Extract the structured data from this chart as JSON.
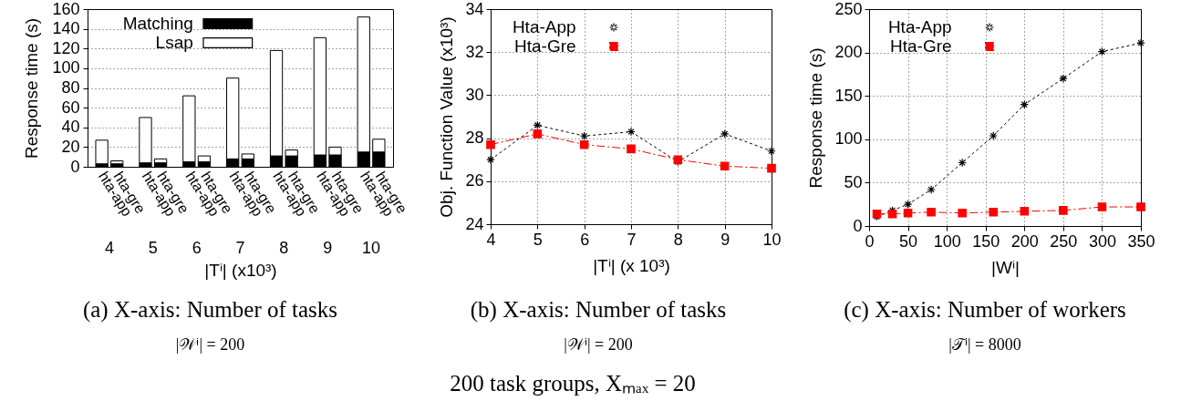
{
  "chart_data": [
    {
      "type": "bar",
      "title": "(a) X-axis: Number of tasks",
      "subtitle": "|𝒲ⁱ| = 200",
      "xlabel": "|Tⁱ| (x10³)",
      "ylabel": "Response time (s)",
      "categories": [
        "hta-app",
        "hta-gre",
        "hta-app",
        "hta-gre",
        "hta-app",
        "hta-gre",
        "hta-app",
        "hta-gre",
        "hta-app",
        "hta-gre",
        "hta-app",
        "hta-gre",
        "hta-app",
        "hta-gre"
      ],
      "series": [
        {
          "name": "Matching",
          "color": "#000000",
          "values": [
            3,
            3,
            4,
            4,
            5,
            5,
            8,
            8,
            11,
            11,
            12,
            12,
            15,
            15
          ]
        },
        {
          "name": "Lsap",
          "color": "#ffffff",
          "values": [
            24,
            3,
            46,
            4,
            67,
            6,
            82,
            5,
            107,
            6,
            119,
            8,
            137,
            13
          ]
        }
      ],
      "stacked": true,
      "ylim": [
        0,
        160
      ],
      "yticks": [
        0,
        20,
        40,
        60,
        80,
        100,
        120,
        140,
        160
      ],
      "grid": "y",
      "legend": "top left",
      "annotations": [
        "4",
        "5",
        "6",
        "7",
        "8",
        "9",
        "10"
      ]
    },
    {
      "type": "line",
      "title": "(b) X-axis: Number of tasks",
      "subtitle": "|𝒲ⁱ| = 200",
      "xlabel": "|Tⁱ| (x 10³)",
      "ylabel": "Obj. Function Value (x10³)",
      "x": [
        4,
        5,
        6,
        7,
        8,
        9,
        10
      ],
      "series": [
        {
          "name": "Hta-App",
          "color": "#000000",
          "marker": "cross",
          "line_style": "dotted",
          "values": [
            27.0,
            28.6,
            28.1,
            28.3,
            26.9,
            28.2,
            27.4
          ]
        },
        {
          "name": "Hta-Gre",
          "color": "#ff0000",
          "marker": "square",
          "line_style": "dashed",
          "values": [
            27.7,
            28.2,
            27.7,
            27.5,
            27.0,
            26.7,
            26.6
          ]
        }
      ],
      "xlim": [
        4,
        10
      ],
      "xticks": [
        4,
        5,
        6,
        7,
        8,
        9,
        10
      ],
      "ylim": [
        24,
        34
      ],
      "yticks": [
        24,
        26,
        28,
        30,
        32,
        34
      ],
      "grid": true,
      "legend": "top left",
      "annotations": [
        "200 task groups, Xₘₐₓ = 20"
      ]
    },
    {
      "type": "line",
      "title": "(c) X-axis: Number of workers",
      "subtitle": "|𝒯ⁱ| = 8000",
      "xlabel": "|Wⁱ|",
      "ylabel": "Response time (s)",
      "x": [
        10,
        30,
        50,
        80,
        120,
        160,
        200,
        250,
        300,
        350
      ],
      "series": [
        {
          "name": "Hta-App",
          "color": "#000000",
          "marker": "cross",
          "line_style": "dotted",
          "values": [
            11,
            18,
            25,
            42,
            73,
            104,
            140,
            170,
            201,
            211
          ]
        },
        {
          "name": "Hta-Gre",
          "color": "#ff0000",
          "marker": "square",
          "line_style": "dashed",
          "values": [
            14,
            14,
            15,
            16,
            15,
            16,
            17,
            18,
            22,
            22
          ]
        }
      ],
      "xlim": [
        0,
        350
      ],
      "xticks": [
        0,
        50,
        100,
        150,
        200,
        250,
        300,
        350
      ],
      "ylim": [
        0,
        250
      ],
      "yticks": [
        0,
        50,
        100,
        150,
        200,
        250
      ],
      "grid": true,
      "legend": "top left"
    }
  ]
}
